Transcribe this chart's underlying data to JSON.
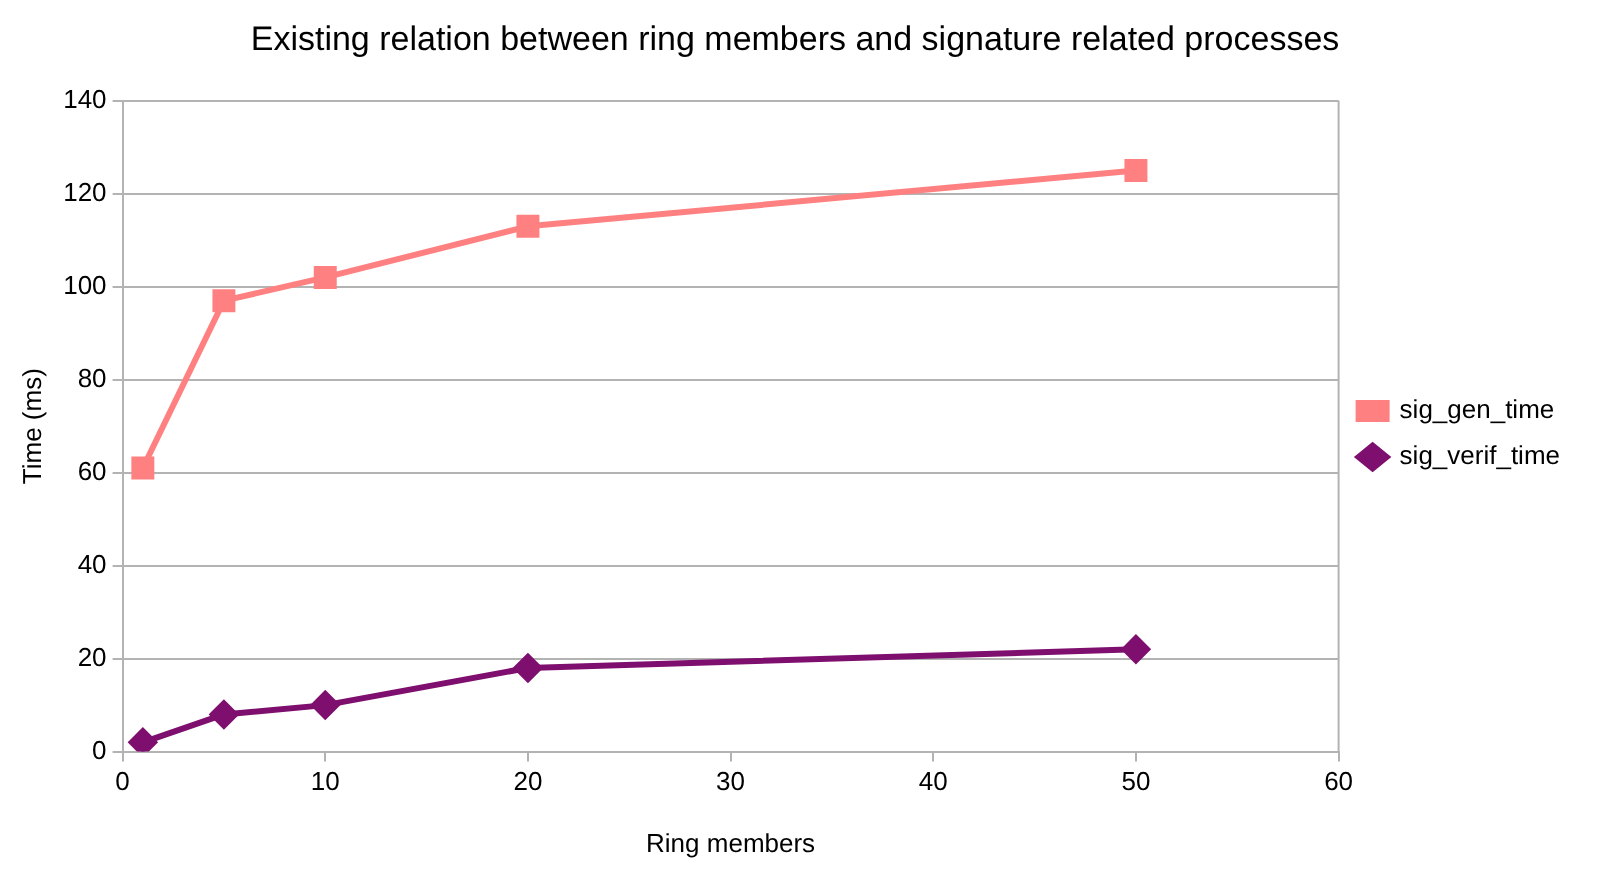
{
  "chart_data": {
    "type": "line",
    "title": "Existing relation between ring members and signature related processes",
    "xlabel": "Ring members",
    "ylabel": "Time (ms)",
    "x": [
      1,
      5,
      10,
      20,
      50
    ],
    "series": [
      {
        "name": "sig_gen_time",
        "color": "#ff8080",
        "marker": "square",
        "values": [
          61,
          97,
          102,
          113,
          125
        ]
      },
      {
        "name": "sig_verif_time",
        "color": "#7e0f6e",
        "marker": "diamond",
        "values": [
          2,
          8,
          10,
          18,
          22
        ]
      }
    ],
    "xlim": [
      0,
      60
    ],
    "xticks": [
      0,
      10,
      20,
      30,
      40,
      50,
      60
    ],
    "ylim": [
      0,
      140
    ],
    "yticks": [
      0,
      20,
      40,
      60,
      80,
      100,
      120,
      140
    ],
    "grid": "y",
    "legend": "right",
    "line_style": "solid"
  }
}
